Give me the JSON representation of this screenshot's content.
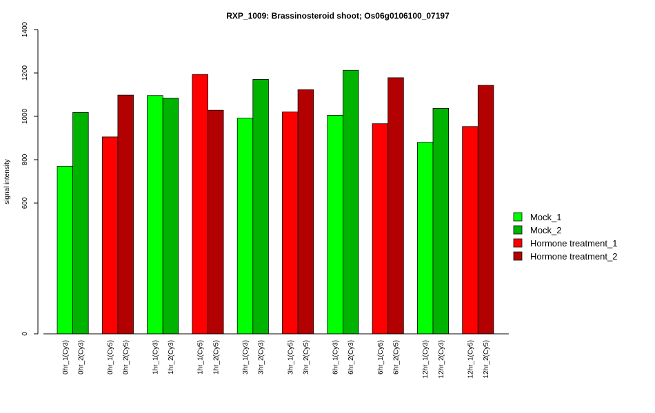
{
  "chart_data": {
    "type": "bar",
    "title": "RXP_1009: Brassinosteroid shoot; Os06g0106100_07197",
    "ylabel": "signal intensity",
    "xlabel": "",
    "ylim": [
      0,
      1400
    ],
    "yticks": [
      "0",
      "600",
      "800",
      "1000",
      "1200",
      "1400"
    ],
    "grid": false,
    "legend_position": "right",
    "series_colors": {
      "Mock_1": "#00ff00",
      "Mock_2": "#00b300",
      "Hormone treatment_1": "#ff0000",
      "Hormone treatment_2": "#b30000"
    },
    "legend": [
      {
        "label": "Mock_1",
        "color": "#00ff00"
      },
      {
        "label": "Mock_2",
        "color": "#00b300"
      },
      {
        "label": "Hormone treatment_1",
        "color": "#ff0000"
      },
      {
        "label": "Hormone treatment_2",
        "color": "#b30000"
      }
    ],
    "groups": [
      {
        "bars": [
          {
            "label": "0hr_1(Cy3)",
            "series": "Mock_1",
            "value": 770
          },
          {
            "label": "0hr_2(Cy3)",
            "series": "Mock_2",
            "value": 1018
          }
        ]
      },
      {
        "bars": [
          {
            "label": "0hr_1(Cy5)",
            "series": "Hormone treatment_1",
            "value": 905
          },
          {
            "label": "0hr_2(Cy5)",
            "series": "Hormone treatment_2",
            "value": 1098
          }
        ]
      },
      {
        "bars": [
          {
            "label": "1hr_1(Cy3)",
            "series": "Mock_1",
            "value": 1096
          },
          {
            "label": "1hr_2(Cy3)",
            "series": "Mock_2",
            "value": 1084
          }
        ]
      },
      {
        "bars": [
          {
            "label": "1hr_1(Cy5)",
            "series": "Hormone treatment_1",
            "value": 1193
          },
          {
            "label": "1hr_2(Cy5)",
            "series": "Hormone treatment_2",
            "value": 1028
          }
        ]
      },
      {
        "bars": [
          {
            "label": "3hr_1(Cy3)",
            "series": "Mock_1",
            "value": 992
          },
          {
            "label": "3hr_2(Cy3)",
            "series": "Mock_2",
            "value": 1170
          }
        ]
      },
      {
        "bars": [
          {
            "label": "3hr_1(Cy5)",
            "series": "Hormone treatment_1",
            "value": 1020
          },
          {
            "label": "3hr_2(Cy5)",
            "series": "Hormone treatment_2",
            "value": 1123
          }
        ]
      },
      {
        "bars": [
          {
            "label": "6hr_1(Cy3)",
            "series": "Mock_1",
            "value": 1005
          },
          {
            "label": "6hr_2(Cy3)",
            "series": "Mock_2",
            "value": 1212
          }
        ]
      },
      {
        "bars": [
          {
            "label": "6hr_1(Cy5)",
            "series": "Hormone treatment_1",
            "value": 966
          },
          {
            "label": "6hr_2(Cy5)",
            "series": "Hormone treatment_2",
            "value": 1178
          }
        ]
      },
      {
        "bars": [
          {
            "label": "12hr_1(Cy3)",
            "series": "Mock_1",
            "value": 880
          },
          {
            "label": "12hr_2(Cy3)",
            "series": "Mock_2",
            "value": 1037
          }
        ]
      },
      {
        "bars": [
          {
            "label": "12hr_1(Cy5)",
            "series": "Hormone treatment_1",
            "value": 953
          },
          {
            "label": "12hr_2(Cy5)",
            "series": "Hormone treatment_2",
            "value": 1143
          }
        ]
      }
    ]
  }
}
